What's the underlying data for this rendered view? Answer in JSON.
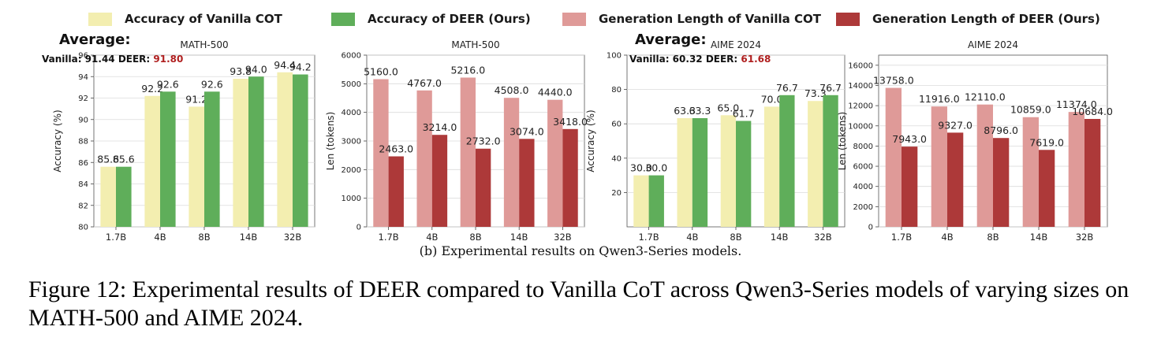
{
  "legend": [
    {
      "label": "Accuracy of Vanilla COT",
      "color": "#f3eeb0"
    },
    {
      "label": "Accuracy of DEER (Ours)",
      "color": "#5fae5a"
    },
    {
      "label": "Generation Length of Vanilla COT",
      "color": "#df9a98"
    },
    {
      "label": "Generation Length of DEER (Ours)",
      "color": "#ad3939"
    }
  ],
  "chart_data": [
    {
      "type": "bar",
      "title": "MATH-500",
      "ylabel": "Accuracy (%)",
      "ylim": [
        80,
        96
      ],
      "yticks": [
        80,
        82,
        84,
        86,
        88,
        90,
        92,
        94,
        96
      ],
      "categories": [
        "1.7B",
        "4B",
        "8B",
        "14B",
        "32B"
      ],
      "series": [
        {
          "name": "Accuracy of Vanilla COT",
          "color": "#f3eeb0",
          "values": [
            85.6,
            92.2,
            91.2,
            93.8,
            94.4
          ]
        },
        {
          "name": "Accuracy of DEER (Ours)",
          "color": "#5fae5a",
          "values": [
            85.6,
            92.6,
            92.6,
            94.0,
            94.2
          ]
        }
      ],
      "value_labels": [
        [
          "85.6",
          "92.2",
          "91.2",
          "93.8",
          "94.4"
        ],
        [
          "85.6",
          "92.6",
          "92.6",
          "94.0",
          "94.2"
        ]
      ],
      "annotation": {
        "heading": "Average:",
        "prefix": "Vanilla: 91.44 DEER: ",
        "highlight": "91.80"
      },
      "grid": true
    },
    {
      "type": "bar",
      "title": "MATH-500",
      "ylabel": "Len (tokens)",
      "ylim": [
        0,
        6000
      ],
      "yticks": [
        0,
        1000,
        2000,
        3000,
        4000,
        5000,
        6000
      ],
      "categories": [
        "1.7B",
        "4B",
        "8B",
        "14B",
        "32B"
      ],
      "series": [
        {
          "name": "Generation Length of Vanilla COT",
          "color": "#df9a98",
          "values": [
            5160.0,
            4767.0,
            5216.0,
            4508.0,
            4440.0
          ]
        },
        {
          "name": "Generation Length of DEER (Ours)",
          "color": "#ad3939",
          "values": [
            2463.0,
            3214.0,
            2732.0,
            3074.0,
            3418.0
          ]
        }
      ],
      "value_labels": [
        [
          "5160.0",
          "4767.0",
          "5216.0",
          "4508.0",
          "4440.0"
        ],
        [
          "2463.0",
          "3214.0",
          "2732.0",
          "3074.0",
          "3418.0"
        ]
      ],
      "grid": true
    },
    {
      "type": "bar",
      "title": "AIME 2024",
      "ylabel": "Accuracy (%)",
      "ylim": [
        0,
        100
      ],
      "yticks": [
        20,
        40,
        60,
        80,
        100
      ],
      "categories": [
        "1.7B",
        "4B",
        "8B",
        "14B",
        "32B"
      ],
      "series": [
        {
          "name": "Accuracy of Vanilla COT",
          "color": "#f3eeb0",
          "values": [
            30.0,
            63.3,
            65.0,
            70.0,
            73.3
          ]
        },
        {
          "name": "Accuracy of DEER (Ours)",
          "color": "#5fae5a",
          "values": [
            30.0,
            63.3,
            61.7,
            76.7,
            76.7
          ]
        }
      ],
      "value_labels": [
        [
          "30.0",
          "63.3",
          "65.0",
          "70.0",
          "73.3"
        ],
        [
          "30.0",
          "63.3",
          "61.7",
          "76.7",
          "76.7"
        ]
      ],
      "annotation": {
        "heading": "Average:",
        "prefix": "Vanilla: 60.32 DEER: ",
        "highlight": "61.68"
      },
      "grid": true
    },
    {
      "type": "bar",
      "title": "AIME 2024",
      "ylabel": "Len (tokens)",
      "ylim": [
        0,
        17000
      ],
      "yticks": [
        0,
        2000,
        4000,
        6000,
        8000,
        10000,
        12000,
        14000,
        16000
      ],
      "categories": [
        "1.7B",
        "4B",
        "8B",
        "14B",
        "32B"
      ],
      "series": [
        {
          "name": "Generation Length of Vanilla COT",
          "color": "#df9a98",
          "values": [
            13758.0,
            11916.0,
            12110.0,
            10859.0,
            11374.0
          ]
        },
        {
          "name": "Generation Length of DEER (Ours)",
          "color": "#ad3939",
          "values": [
            7943.0,
            9327.0,
            8796.0,
            7619.0,
            10684.0
          ]
        }
      ],
      "value_labels": [
        [
          "13758.0",
          "11916.0",
          "12110.0",
          "10859.0",
          "11374.0"
        ],
        [
          "7943.0",
          "9327.0",
          "8796.0",
          "7619.0",
          "10684.0"
        ]
      ],
      "grid": true
    }
  ],
  "subcaption": "(b) Experimental results on Qwen3-Series models.",
  "caption": "Figure 12: Experimental results of DEER compared to Vanilla CoT across Qwen3-Series models of varying sizes on MATH-500 and AIME 2024."
}
